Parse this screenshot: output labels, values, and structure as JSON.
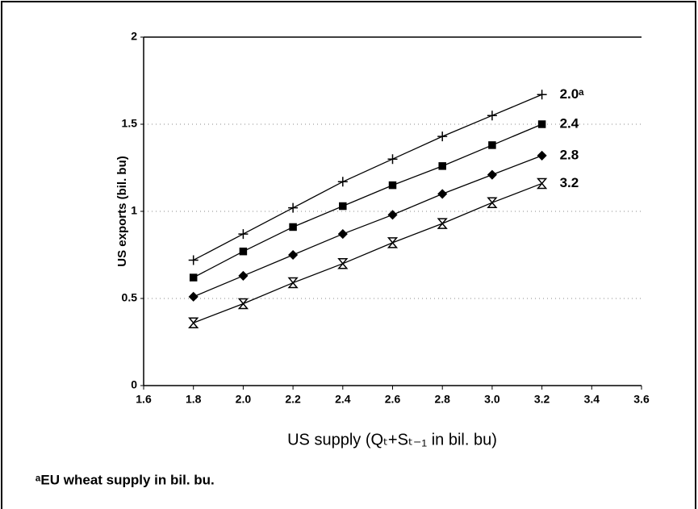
{
  "chart_data": {
    "type": "line",
    "xlabel": "US supply (Qₜ+Sₜ₋₁ in bil. bu)",
    "ylabel": "US exports (bil. bu)",
    "footnote": "ᵃEU wheat supply in bil. bu.",
    "x": [
      1.8,
      2.0,
      2.2,
      2.4,
      2.6,
      2.8,
      3.0,
      3.2
    ],
    "series": [
      {
        "name": "2.0ᵃ",
        "color": "#000000",
        "marker": "plus",
        "values": [
          0.72,
          0.87,
          1.02,
          1.17,
          1.3,
          1.43,
          1.55,
          1.67
        ]
      },
      {
        "name": "2.4",
        "color": "#000000",
        "marker": "square",
        "values": [
          0.62,
          0.77,
          0.91,
          1.03,
          1.15,
          1.26,
          1.38,
          1.5
        ]
      },
      {
        "name": "2.8",
        "color": "#000000",
        "marker": "diamond",
        "values": [
          0.51,
          0.63,
          0.75,
          0.87,
          0.98,
          1.1,
          1.21,
          1.32
        ]
      },
      {
        "name": "3.2",
        "color": "#000000",
        "marker": "hourglass",
        "values": [
          0.36,
          0.47,
          0.59,
          0.7,
          0.82,
          0.93,
          1.05,
          1.16
        ]
      }
    ],
    "xlim": [
      1.6,
      3.6
    ],
    "xticks": [
      1.6,
      1.8,
      {
        "value": 2,
        "label": "2.0"
      },
      2.2,
      2.4,
      2.6,
      2.8,
      {
        "value": 3,
        "label": "3.0"
      },
      3.2,
      3.4,
      3.6
    ],
    "ylim": [
      0,
      2
    ],
    "yticks": [
      0,
      0.5,
      1,
      1.5,
      2
    ],
    "grid": true
  }
}
